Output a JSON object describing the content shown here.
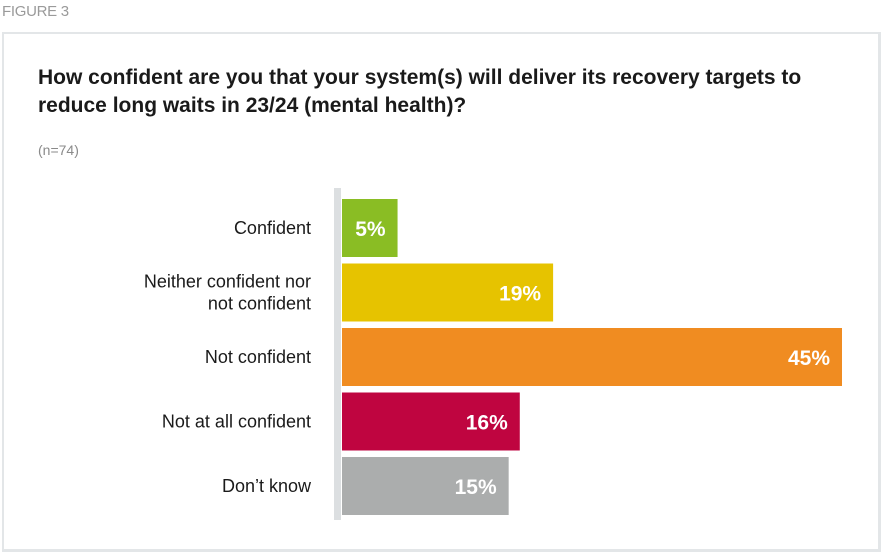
{
  "figure_label": "FIGURE 3",
  "chart_data": {
    "type": "bar",
    "orientation": "horizontal",
    "title": "How confident are you that your system(s) will deliver its recovery targets to reduce long waits in 23/24 (mental health)?",
    "subtitle": "(n=74)",
    "categories": [
      [
        "Confident"
      ],
      [
        "Neither confident nor",
        "not confident"
      ],
      [
        "Not confident"
      ],
      [
        "Not at all confident"
      ],
      [
        "Don’t know"
      ]
    ],
    "values": [
      5,
      19,
      45,
      16,
      15
    ],
    "value_labels": [
      "5%",
      "19%",
      "45%",
      "16%",
      "15%"
    ],
    "colors": [
      "#8ABD24",
      "#E6C300",
      "#F08C21",
      "#BF0540",
      "#ABADAD"
    ],
    "xlabel": "",
    "ylabel": "",
    "xlim": [
      0,
      45
    ],
    "grid": false,
    "legend": "none"
  }
}
